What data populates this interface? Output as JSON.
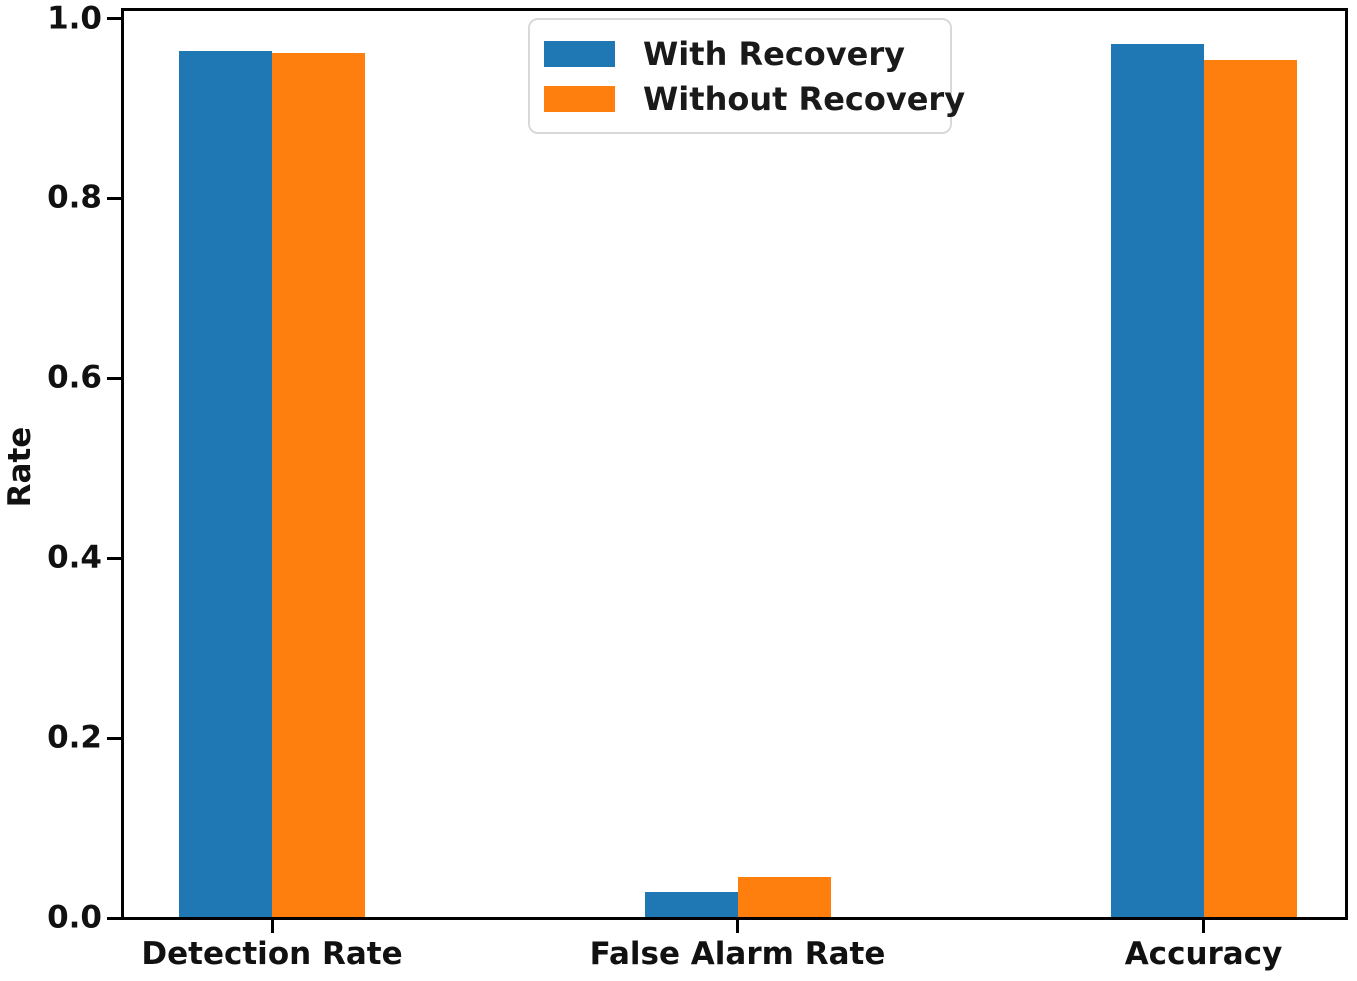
{
  "chart_data": {
    "type": "bar",
    "title": "",
    "categories": [
      "Detection Rate",
      "False Alarm Rate",
      "Accuracy"
    ],
    "series": [
      {
        "name": "With Recovery",
        "color": "#1f77b4",
        "values": [
          0.963,
          0.028,
          0.971
        ]
      },
      {
        "name": "Without Recovery",
        "color": "#ff7f0e",
        "values": [
          0.96,
          0.045,
          0.953
        ]
      }
    ],
    "xlabel": "",
    "ylabel": "Rate",
    "ylim": [
      0.0,
      1.0
    ],
    "yticks": [
      0.0,
      0.2,
      0.4,
      0.6,
      0.8,
      1.0
    ],
    "ytick_labels": [
      "0.0",
      "0.2",
      "0.4",
      "0.6",
      "0.8",
      "1.0"
    ],
    "grid": false,
    "legend_position": "upper center",
    "axis_color": "#000000",
    "background_color": "#ffffff"
  }
}
